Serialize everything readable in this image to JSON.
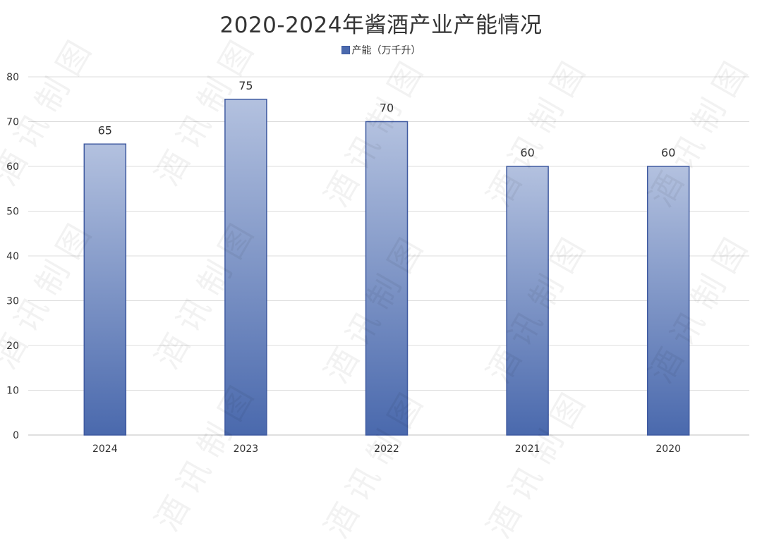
{
  "chart_data": {
    "type": "bar",
    "title": "2020-2024年酱酒产业产能情况",
    "xlabel": "",
    "ylabel": "",
    "categories": [
      "2024",
      "2023",
      "2022",
      "2021",
      "2020"
    ],
    "series": [
      {
        "name": "产能（万千升）",
        "values": [
          65,
          75,
          70,
          60,
          60
        ]
      }
    ],
    "ylim": [
      0,
      80
    ],
    "yticks": [
      0,
      10,
      20,
      30,
      40,
      50,
      60,
      70,
      80
    ],
    "grid": true,
    "legend_position": "top-center",
    "data_labels": true,
    "colors": {
      "bar_top": "#b3c1df",
      "bar_bottom": "#4a69ad",
      "bar_border": "#3f5aa0"
    }
  },
  "watermark": "酒讯制图"
}
